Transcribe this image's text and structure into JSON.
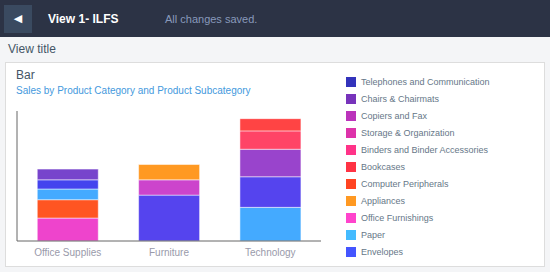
{
  "chart_data": {
    "type": "bar",
    "stacked": true,
    "title": "Bar",
    "subtitle": "Sales by Product Category and Product Subcategory",
    "annotations": [
      "◀",
      "View 1- ILFS",
      "All changes saved.",
      "View title"
    ],
    "categories": [
      "Office Supplies",
      "Furniture",
      "Technology"
    ],
    "series": [
      {
        "values": [
          15,
          30,
          22
        ],
        "colors": [
          "#ee44cc",
          "#5544ee",
          "#44aaff"
        ]
      },
      {
        "values": [
          12,
          10,
          20
        ],
        "colors": [
          "#ff5522",
          "#cc44cc",
          "#5544ee"
        ]
      },
      {
        "values": [
          7,
          10,
          18
        ],
        "colors": [
          "#44aaff",
          "#ff9922",
          "#9944cc"
        ]
      },
      {
        "values": [
          6,
          null,
          12
        ],
        "colors": [
          "#4444ee",
          null,
          "#ff4466"
        ]
      },
      {
        "values": [
          7,
          null,
          8
        ],
        "colors": [
          "#7744cc",
          null,
          "#ff4444"
        ]
      }
    ],
    "ylim": [
      0,
      85
    ],
    "grid": false,
    "tick_labels": "x",
    "legend_entries": [
      {
        "name": "Telephones and Communication",
        "color": "#3333bb"
      },
      {
        "name": "Chairs & Chairmats",
        "color": "#7733bb"
      },
      {
        "name": "Copiers and Fax",
        "color": "#bb33bb"
      },
      {
        "name": "Storage & Organization",
        "color": "#dd33aa"
      },
      {
        "name": "Binders and Binder Accessories",
        "color": "#ff3388"
      },
      {
        "name": "Bookcases",
        "color": "#ff3344"
      },
      {
        "name": "Computer Peripherals",
        "color": "#ff4422"
      },
      {
        "name": "Appliances",
        "color": "#ff9922"
      },
      {
        "name": "Office Furnishings",
        "color": "#ff44cc"
      },
      {
        "name": "Paper",
        "color": "#44bbff"
      },
      {
        "name": "Envelopes",
        "color": "#4455ff"
      }
    ]
  }
}
